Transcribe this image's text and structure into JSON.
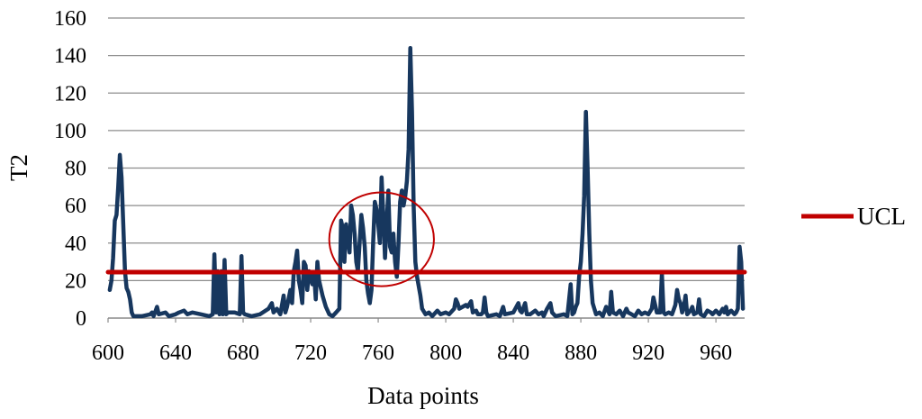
{
  "chart_data": {
    "type": "line",
    "title": "",
    "xlabel": "Data points",
    "ylabel": "T2",
    "xlim": [
      600,
      977
    ],
    "ylim": [
      0,
      160
    ],
    "xticks": [
      "600",
      "640",
      "680",
      "720",
      "760",
      "800",
      "840",
      "880",
      "920",
      "960"
    ],
    "yticks": [
      "0",
      "20",
      "40",
      "60",
      "80",
      "100",
      "120",
      "140",
      "160"
    ],
    "grid": true,
    "legend_position": "right",
    "legend": [
      {
        "name": "UCL",
        "color": "#c00000"
      }
    ],
    "series": [
      {
        "color": "#17375e",
        "points": [
          [
            601,
            15
          ],
          [
            602,
            20
          ],
          [
            603,
            32
          ],
          [
            604,
            52
          ],
          [
            605,
            55
          ],
          [
            606,
            70
          ],
          [
            607,
            87
          ],
          [
            608,
            75
          ],
          [
            609,
            50
          ],
          [
            610,
            25
          ],
          [
            611,
            16
          ],
          [
            612,
            14
          ],
          [
            613,
            10
          ],
          [
            614,
            3
          ],
          [
            615,
            1
          ],
          [
            620,
            1
          ],
          [
            625,
            2
          ],
          [
            626,
            3
          ],
          [
            627,
            1
          ],
          [
            629,
            6
          ],
          [
            630,
            2
          ],
          [
            634,
            3
          ],
          [
            636,
            1
          ],
          [
            640,
            2
          ],
          [
            642,
            3
          ],
          [
            645,
            4
          ],
          [
            647,
            2
          ],
          [
            650,
            3
          ],
          [
            655,
            2
          ],
          [
            660,
            1
          ],
          [
            662,
            2
          ],
          [
            663,
            34
          ],
          [
            664,
            3
          ],
          [
            665,
            25
          ],
          [
            666,
            2
          ],
          [
            667,
            25
          ],
          [
            668,
            2
          ],
          [
            669,
            31
          ],
          [
            670,
            2
          ],
          [
            671,
            3
          ],
          [
            675,
            3
          ],
          [
            678,
            2
          ],
          [
            679,
            33
          ],
          [
            680,
            3
          ],
          [
            681,
            2
          ],
          [
            685,
            1
          ],
          [
            690,
            2
          ],
          [
            695,
            5
          ],
          [
            697,
            8
          ],
          [
            698,
            3
          ],
          [
            700,
            5
          ],
          [
            702,
            2
          ],
          [
            703,
            7
          ],
          [
            704,
            12
          ],
          [
            705,
            3
          ],
          [
            706,
            6
          ],
          [
            708,
            15
          ],
          [
            709,
            8
          ],
          [
            710,
            25
          ],
          [
            711,
            30
          ],
          [
            712,
            36
          ],
          [
            713,
            20
          ],
          [
            714,
            15
          ],
          [
            715,
            8
          ],
          [
            716,
            30
          ],
          [
            717,
            28
          ],
          [
            718,
            15
          ],
          [
            719,
            25
          ],
          [
            720,
            22
          ],
          [
            721,
            18
          ],
          [
            722,
            24
          ],
          [
            723,
            10
          ],
          [
            724,
            30
          ],
          [
            725,
            20
          ],
          [
            727,
            12
          ],
          [
            729,
            6
          ],
          [
            731,
            2
          ],
          [
            733,
            1
          ],
          [
            735,
            3
          ],
          [
            737,
            5
          ],
          [
            738,
            52
          ],
          [
            739,
            48
          ],
          [
            740,
            30
          ],
          [
            741,
            50
          ],
          [
            742,
            42
          ],
          [
            743,
            35
          ],
          [
            744,
            60
          ],
          [
            745,
            55
          ],
          [
            746,
            45
          ],
          [
            747,
            30
          ],
          [
            748,
            25
          ],
          [
            749,
            40
          ],
          [
            750,
            55
          ],
          [
            751,
            48
          ],
          [
            752,
            38
          ],
          [
            753,
            20
          ],
          [
            754,
            13
          ],
          [
            755,
            8
          ],
          [
            756,
            15
          ],
          [
            757,
            40
          ],
          [
            758,
            62
          ],
          [
            759,
            58
          ],
          [
            760,
            50
          ],
          [
            761,
            40
          ],
          [
            762,
            75
          ],
          [
            763,
            55
          ],
          [
            764,
            32
          ],
          [
            765,
            50
          ],
          [
            766,
            68
          ],
          [
            767,
            38
          ],
          [
            768,
            35
          ],
          [
            769,
            45
          ],
          [
            770,
            30
          ],
          [
            771,
            22
          ],
          [
            772,
            40
          ],
          [
            773,
            62
          ],
          [
            774,
            68
          ],
          [
            775,
            60
          ],
          [
            776,
            65
          ],
          [
            777,
            73
          ],
          [
            778,
            90
          ],
          [
            779,
            144
          ],
          [
            780,
            110
          ],
          [
            781,
            60
          ],
          [
            782,
            30
          ],
          [
            783,
            22
          ],
          [
            785,
            12
          ],
          [
            786,
            5
          ],
          [
            788,
            2
          ],
          [
            790,
            3
          ],
          [
            792,
            1
          ],
          [
            795,
            4
          ],
          [
            797,
            2
          ],
          [
            800,
            3
          ],
          [
            802,
            2
          ],
          [
            805,
            5
          ],
          [
            806,
            10
          ],
          [
            807,
            8
          ],
          [
            808,
            5
          ],
          [
            810,
            6
          ],
          [
            812,
            7
          ],
          [
            813,
            6
          ],
          [
            815,
            9
          ],
          [
            816,
            3
          ],
          [
            818,
            4
          ],
          [
            819,
            2
          ],
          [
            821,
            2
          ],
          [
            822,
            3
          ],
          [
            823,
            11
          ],
          [
            824,
            3
          ],
          [
            825,
            1
          ],
          [
            830,
            2
          ],
          [
            832,
            1
          ],
          [
            834,
            6
          ],
          [
            835,
            2
          ],
          [
            840,
            3
          ],
          [
            843,
            8
          ],
          [
            844,
            4
          ],
          [
            845,
            3
          ],
          [
            847,
            8
          ],
          [
            848,
            2
          ],
          [
            850,
            2
          ],
          [
            853,
            4
          ],
          [
            855,
            2
          ],
          [
            857,
            3
          ],
          [
            858,
            1
          ],
          [
            860,
            5
          ],
          [
            862,
            8
          ],
          [
            863,
            3
          ],
          [
            865,
            1
          ],
          [
            870,
            2
          ],
          [
            872,
            1
          ],
          [
            874,
            18
          ],
          [
            875,
            2
          ],
          [
            876,
            3
          ],
          [
            877,
            6
          ],
          [
            878,
            8
          ],
          [
            879,
            22
          ],
          [
            880,
            30
          ],
          [
            881,
            45
          ],
          [
            882,
            65
          ],
          [
            883,
            110
          ],
          [
            884,
            80
          ],
          [
            885,
            45
          ],
          [
            886,
            20
          ],
          [
            887,
            8
          ],
          [
            888,
            5
          ],
          [
            889,
            2
          ],
          [
            891,
            3
          ],
          [
            893,
            1
          ],
          [
            895,
            6
          ],
          [
            897,
            2
          ],
          [
            898,
            14
          ],
          [
            899,
            3
          ],
          [
            901,
            2
          ],
          [
            903,
            4
          ],
          [
            905,
            1
          ],
          [
            907,
            5
          ],
          [
            908,
            3
          ],
          [
            910,
            2
          ],
          [
            912,
            1
          ],
          [
            914,
            4
          ],
          [
            916,
            2
          ],
          [
            918,
            3
          ],
          [
            920,
            2
          ],
          [
            922,
            5
          ],
          [
            923,
            11
          ],
          [
            924,
            7
          ],
          [
            925,
            3
          ],
          [
            927,
            3
          ],
          [
            928,
            24
          ],
          [
            929,
            3
          ],
          [
            930,
            2
          ],
          [
            932,
            3
          ],
          [
            934,
            2
          ],
          [
            936,
            7
          ],
          [
            937,
            15
          ],
          [
            938,
            10
          ],
          [
            939,
            8
          ],
          [
            940,
            3
          ],
          [
            941,
            6
          ],
          [
            942,
            12
          ],
          [
            943,
            2
          ],
          [
            944,
            3
          ],
          [
            945,
            4
          ],
          [
            946,
            6
          ],
          [
            947,
            2
          ],
          [
            949,
            3
          ],
          [
            950,
            10
          ],
          [
            951,
            2
          ],
          [
            953,
            1
          ],
          [
            955,
            4
          ],
          [
            957,
            3
          ],
          [
            958,
            2
          ],
          [
            960,
            4
          ],
          [
            962,
            2
          ],
          [
            964,
            5
          ],
          [
            965,
            3
          ],
          [
            966,
            6
          ],
          [
            967,
            2
          ],
          [
            968,
            3
          ],
          [
            969,
            4
          ],
          [
            970,
            3
          ],
          [
            971,
            2
          ],
          [
            972,
            3
          ],
          [
            973,
            5
          ],
          [
            974,
            38
          ],
          [
            975,
            30
          ],
          [
            976,
            5
          ]
        ]
      },
      {
        "color": "#c00000",
        "legend_name": "UCL",
        "points": [
          [
            600,
            24.5
          ],
          [
            977,
            24.5
          ]
        ]
      }
    ],
    "annotations": [
      {
        "type": "ellipse",
        "stroke": "#c00000",
        "center": [
          762,
          42
        ],
        "rx": 31,
        "ry": 25
      }
    ]
  }
}
